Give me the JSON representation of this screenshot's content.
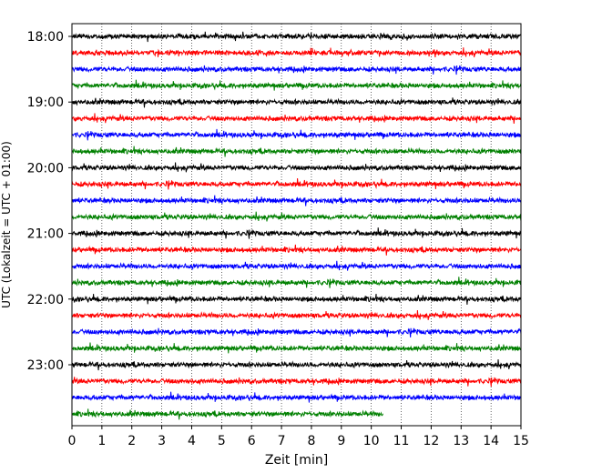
{
  "chart_data": {
    "type": "line",
    "title": "",
    "xlabel": "Zeit  [min]",
    "ylabel": "UTC (Lokalzeit = UTC + 01:00)",
    "xlim": [
      0,
      15
    ],
    "x_ticks": [
      0,
      1,
      2,
      3,
      4,
      5,
      6,
      7,
      8,
      9,
      10,
      11,
      12,
      13,
      14,
      15
    ],
    "y_tick_labels": [
      "18:00",
      "19:00",
      "20:00",
      "21:00",
      "22:00",
      "23:00"
    ],
    "grid": "vertical dotted",
    "trace_colors": [
      "#000000",
      "#ff0000",
      "#0000ff",
      "#008000"
    ],
    "traces": [
      {
        "start": "18:00",
        "color": "#000000",
        "end_min": 15
      },
      {
        "start": "18:15",
        "color": "#ff0000",
        "end_min": 15
      },
      {
        "start": "18:30",
        "color": "#0000ff",
        "end_min": 15
      },
      {
        "start": "18:45",
        "color": "#008000",
        "end_min": 15
      },
      {
        "start": "19:00",
        "color": "#000000",
        "end_min": 15
      },
      {
        "start": "19:15",
        "color": "#ff0000",
        "end_min": 15
      },
      {
        "start": "19:30",
        "color": "#0000ff",
        "end_min": 15
      },
      {
        "start": "19:45",
        "color": "#008000",
        "end_min": 15
      },
      {
        "start": "20:00",
        "color": "#000000",
        "end_min": 15
      },
      {
        "start": "20:15",
        "color": "#ff0000",
        "end_min": 15
      },
      {
        "start": "20:30",
        "color": "#0000ff",
        "end_min": 15
      },
      {
        "start": "20:45",
        "color": "#008000",
        "end_min": 15
      },
      {
        "start": "21:00",
        "color": "#000000",
        "end_min": 15
      },
      {
        "start": "21:15",
        "color": "#ff0000",
        "end_min": 15
      },
      {
        "start": "21:30",
        "color": "#0000ff",
        "end_min": 15
      },
      {
        "start": "21:45",
        "color": "#008000",
        "end_min": 15
      },
      {
        "start": "22:00",
        "color": "#000000",
        "end_min": 15
      },
      {
        "start": "22:15",
        "color": "#ff0000",
        "end_min": 15
      },
      {
        "start": "22:30",
        "color": "#0000ff",
        "end_min": 15
      },
      {
        "start": "22:45",
        "color": "#008000",
        "end_min": 15
      },
      {
        "start": "23:00",
        "color": "#000000",
        "end_min": 15
      },
      {
        "start": "23:15",
        "color": "#ff0000",
        "end_min": 15
      },
      {
        "start": "23:30",
        "color": "#0000ff",
        "end_min": 15
      },
      {
        "start": "23:45",
        "color": "#008000",
        "end_min": 10.4
      }
    ]
  }
}
